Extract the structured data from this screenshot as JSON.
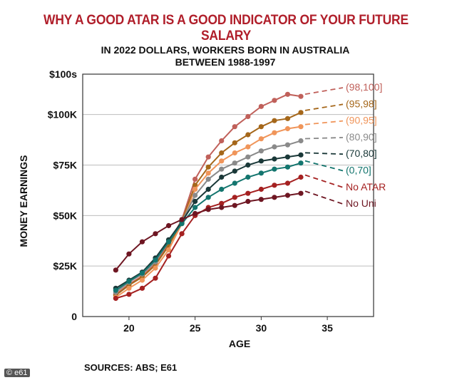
{
  "headline": "WHY A GOOD ATAR IS A GOOD INDICATOR OF YOUR FUTURE SALARY",
  "credit": "© e61",
  "chart_data": {
    "type": "line",
    "title": "IN 2022 DOLLARS, WORKERS BORN IN AUSTRALIA",
    "subtitle": "BETWEEN 1988-1997",
    "xlabel": "AGE",
    "ylabel": "MONEY EARNINGS",
    "source": "SOURCES: ABS; E61",
    "xlim": [
      16.5,
      38.5
    ],
    "ylim": [
      0,
      120000
    ],
    "x_ticks": [
      20,
      25,
      30,
      35
    ],
    "y_ticks": [
      {
        "value": 0,
        "label": "0"
      },
      {
        "value": 25000,
        "label": "$25K"
      },
      {
        "value": 50000,
        "label": "$50K"
      },
      {
        "value": 75000,
        "label": "$75K"
      },
      {
        "value": 100000,
        "label": "$100K"
      },
      {
        "value": 120000,
        "label": "$100s"
      }
    ],
    "grid": true,
    "x": [
      19,
      20,
      21,
      22,
      23,
      24,
      25,
      26,
      27,
      28,
      29,
      30,
      31,
      32,
      33
    ],
    "series": [
      {
        "name": "(98,100]",
        "color": "#c0605a",
        "values": [
          11000,
          16000,
          20000,
          26000,
          36000,
          48000,
          68000,
          79000,
          87000,
          94000,
          99000,
          104000,
          107000,
          110000,
          109000
        ]
      },
      {
        "name": "(95,98]",
        "color": "#a5671a",
        "values": [
          10500,
          15500,
          19500,
          25500,
          35000,
          47000,
          65000,
          74000,
          81000,
          86000,
          90000,
          94000,
          97000,
          98000,
          101000
        ]
      },
      {
        "name": "(90,95]",
        "color": "#f0955a",
        "values": [
          9500,
          14000,
          18000,
          24000,
          33000,
          46000,
          63000,
          71000,
          77000,
          81000,
          84000,
          88000,
          91000,
          93000,
          94000
        ]
      },
      {
        "name": "(80,90]",
        "color": "#8a8a8a",
        "values": [
          12000,
          17000,
          21000,
          27000,
          37000,
          47000,
          60000,
          68000,
          73000,
          76000,
          79000,
          82000,
          84000,
          85000,
          87000
        ]
      },
      {
        "name": "(70,80]",
        "color": "#1a3838",
        "values": [
          14000,
          18000,
          22000,
          29000,
          38000,
          47000,
          57000,
          63000,
          69000,
          72000,
          75000,
          77000,
          78000,
          79000,
          80000
        ]
      },
      {
        "name": "(0,70]",
        "color": "#13756e",
        "values": [
          13000,
          17500,
          21500,
          28000,
          37000,
          46000,
          54000,
          59000,
          63000,
          66000,
          69000,
          71000,
          73000,
          74000,
          76000
        ]
      },
      {
        "name": "No ATAR",
        "color": "#a52121",
        "values": [
          9000,
          11000,
          14000,
          19000,
          30000,
          41000,
          50000,
          54000,
          56000,
          59000,
          61000,
          63000,
          65000,
          66000,
          69000
        ]
      },
      {
        "name": "No Uni",
        "color": "#6e1622",
        "values": [
          23000,
          31000,
          37000,
          41000,
          45000,
          48000,
          51000,
          53000,
          54000,
          55000,
          57000,
          58000,
          59000,
          60000,
          61000
        ]
      }
    ]
  }
}
